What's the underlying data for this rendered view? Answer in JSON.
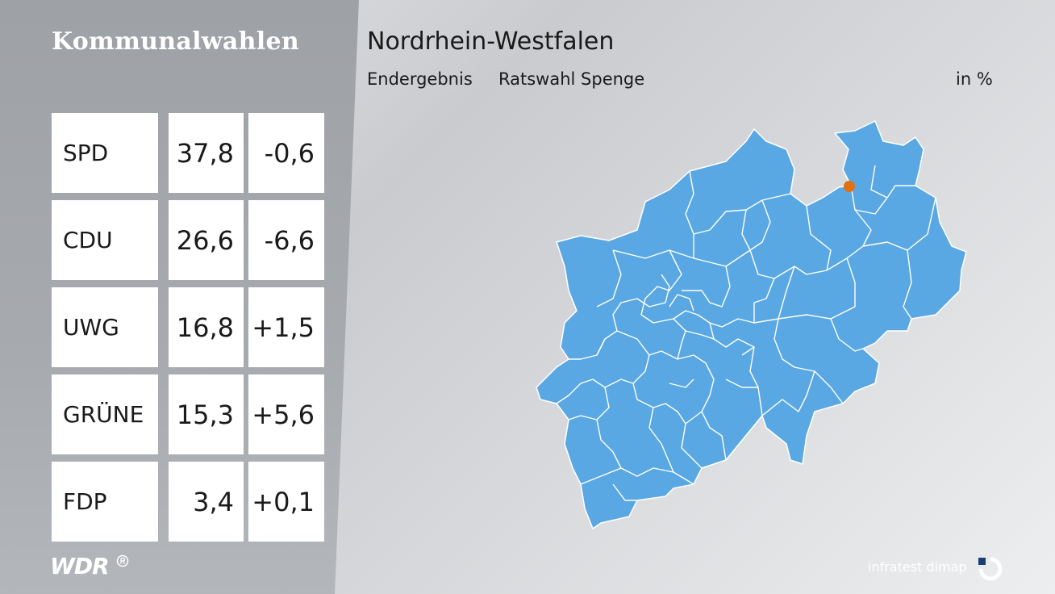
{
  "header": {
    "section_title": "Kommunalwahlen",
    "map_title": "Nordrhein-Westfalen",
    "status": "Endergebnis",
    "election": "Ratswahl Spenge",
    "unit": "in %"
  },
  "results": [
    {
      "party": "SPD",
      "value": "37,8",
      "change": "-0,6"
    },
    {
      "party": "CDU",
      "value": "26,6",
      "change": "-6,6"
    },
    {
      "party": "UWG",
      "value": "16,8",
      "change": "+1,5"
    },
    {
      "party": "GRÜNE",
      "value": "15,3",
      "change": "+5,6"
    },
    {
      "party": "FDP",
      "value": "3,4",
      "change": "+0,1"
    }
  ],
  "map": {
    "region": "Nordrhein-Westfalen",
    "fill_color": "#5aa8e3",
    "border_color": "#ffffff",
    "marker_color": "#e07010",
    "marker_location": "Spenge"
  },
  "footer": {
    "broadcaster_logo": "WDR",
    "source": "infratest dimap"
  }
}
